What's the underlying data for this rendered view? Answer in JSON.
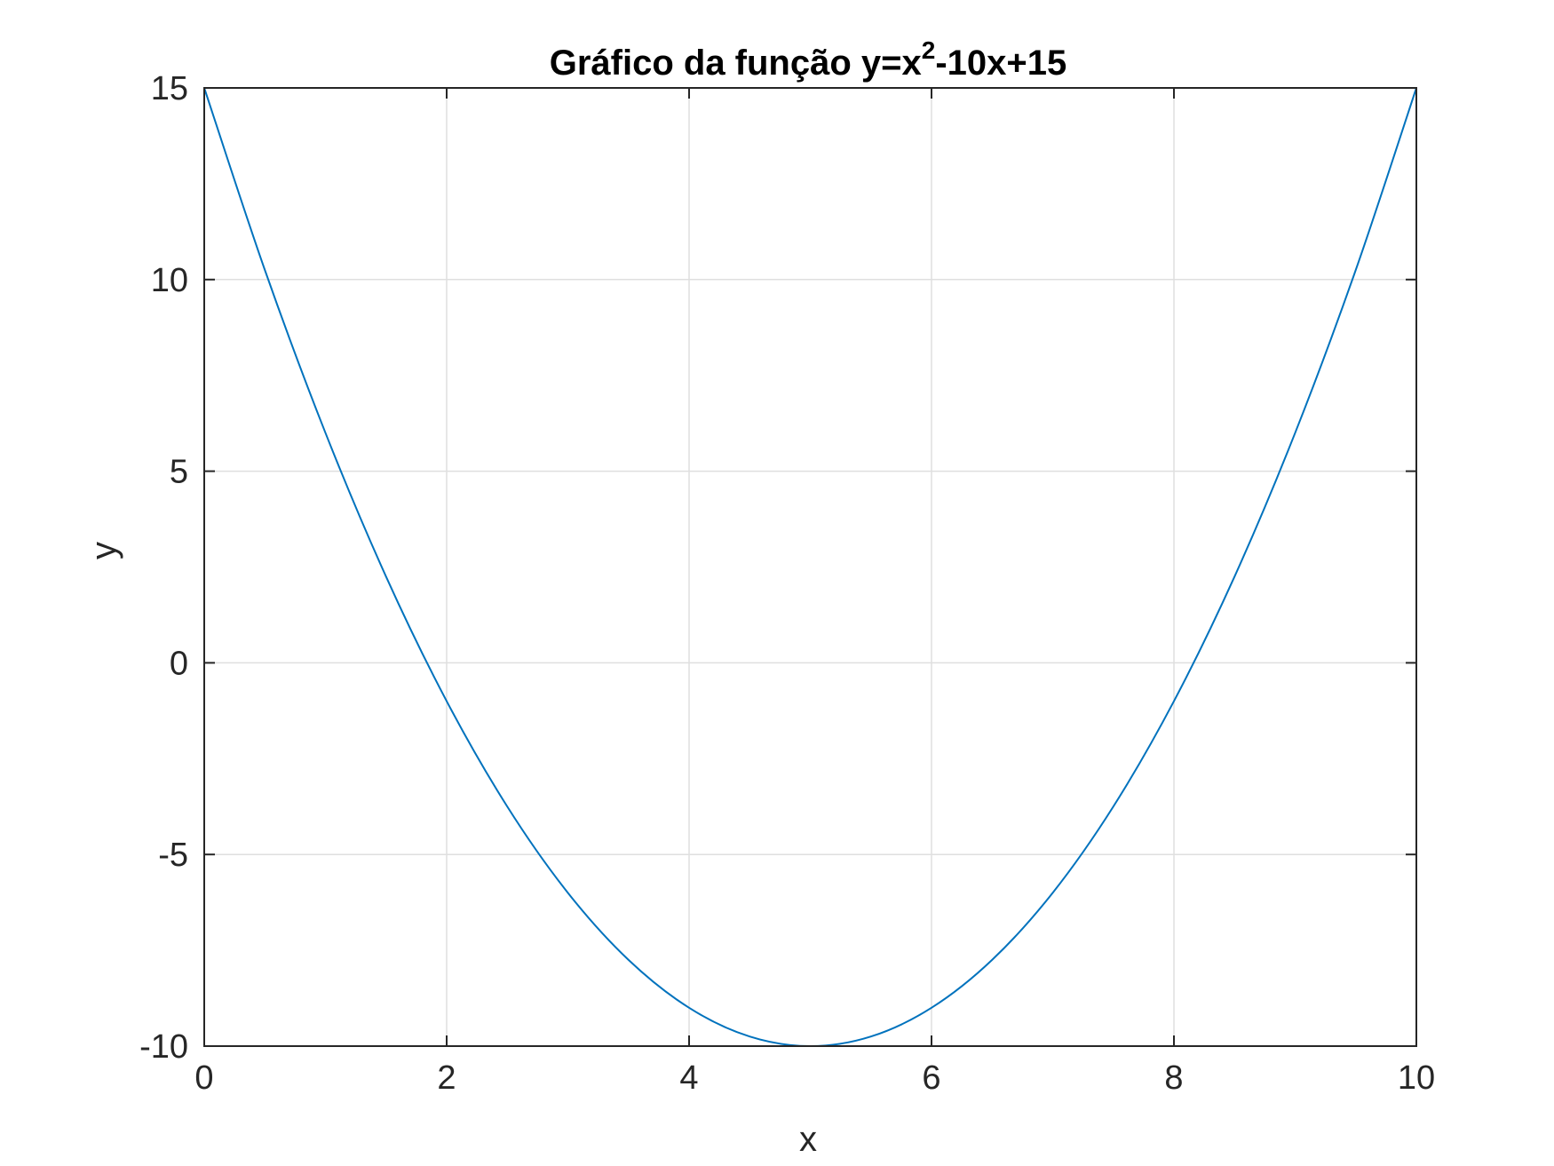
{
  "chart_data": {
    "type": "line",
    "title": {
      "prefix": "Gráfico da função y=x",
      "superscript": "2",
      "suffix": "-10x+15"
    },
    "xlabel": "x",
    "ylabel": "y",
    "xlim": [
      0,
      10
    ],
    "ylim": [
      -10,
      15
    ],
    "xticks": [
      0,
      2,
      4,
      6,
      8,
      10
    ],
    "xtick_labels": [
      "0",
      "2",
      "4",
      "6",
      "8",
      "10"
    ],
    "yticks": [
      -10,
      -5,
      0,
      5,
      10,
      15
    ],
    "ytick_labels": [
      "-10",
      "-5",
      "0",
      "5",
      "10",
      "15"
    ],
    "grid": true,
    "series": [
      {
        "color": "#0072BD",
        "x": [
          0,
          0.5,
          1,
          1.5,
          2,
          2.5,
          3,
          3.5,
          4,
          4.5,
          5,
          5.5,
          6,
          6.5,
          7,
          7.5,
          8,
          8.5,
          9,
          9.5,
          10
        ],
        "y": [
          15,
          10.25,
          6,
          2.25,
          -1,
          -3.75,
          -6,
          -7.75,
          -9,
          -9.75,
          -10,
          -9.75,
          -9,
          -7.75,
          -6,
          -3.75,
          -1,
          2.25,
          6,
          10.25,
          15
        ]
      }
    ],
    "colors": {
      "line": "#0072BD",
      "axes": "#262626",
      "grid": "#DFDFDF",
      "background": "#FFFFFF"
    }
  }
}
